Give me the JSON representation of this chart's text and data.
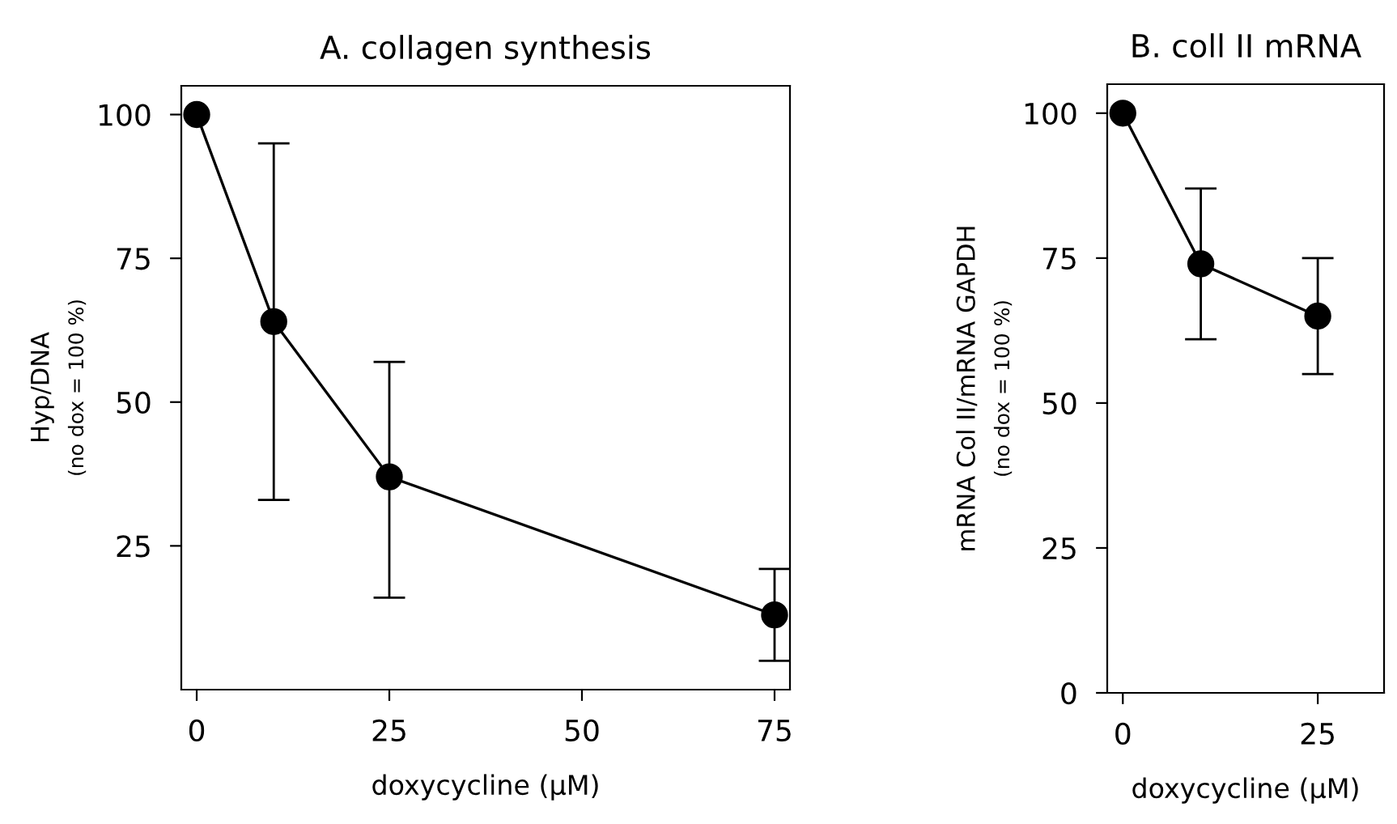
{
  "chart_data": [
    {
      "type": "line",
      "title": "A. collagen synthesis",
      "xlabel": "doxycycline (μM)",
      "ylabel": "Hyp/DNA\n(no dox = 100 %)",
      "x": [
        0,
        10,
        25,
        75
      ],
      "values": [
        100,
        64,
        37,
        13
      ],
      "color": "#000000",
      "errors": [
        null,
        [
          33,
          95
        ],
        [
          16,
          57
        ],
        [
          5,
          21
        ]
      ],
      "xlim": [
        -2,
        77
      ],
      "ylim": [
        0,
        105
      ],
      "xticks": [
        0,
        25,
        50,
        75
      ],
      "yticks": [
        25,
        50,
        75,
        100
      ],
      "marker": "circle",
      "line_style": "solid",
      "grid": false,
      "legend": false
    },
    {
      "type": "line",
      "title": "B. coll II mRNA",
      "xlabel": "doxycycline (μM)",
      "ylabel": "mRNA Col II/mRNA GAPDH\n(no dox = 100 %)",
      "x": [
        0,
        10,
        25
      ],
      "values": [
        100,
        74,
        65
      ],
      "color": "#000000",
      "errors": [
        null,
        [
          61,
          87
        ],
        [
          55,
          75
        ]
      ],
      "xlim": [
        -2,
        33.5
      ],
      "ylim": [
        0,
        105
      ],
      "xticks": [
        0,
        25
      ],
      "yticks": [
        0,
        25,
        50,
        75,
        100
      ],
      "marker": "circle",
      "line_style": "solid",
      "grid": false,
      "legend": false
    }
  ]
}
